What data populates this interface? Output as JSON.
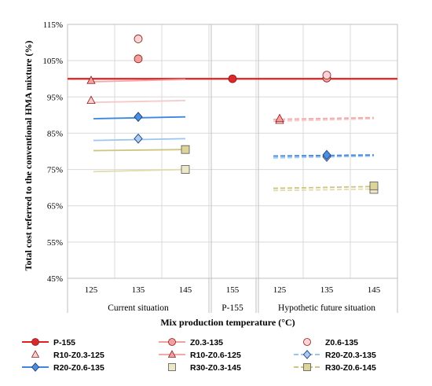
{
  "chart_data": {
    "type": "scatter",
    "title": "",
    "ylabel": "Total cost referred to the conventional HMA mixture (%)",
    "xlabel": "Mix production temperature (°C)",
    "ylim": [
      45,
      115
    ],
    "y_ticks": [
      "45%",
      "55%",
      "65%",
      "75%",
      "85%",
      "95%",
      "105%",
      "115%"
    ],
    "y_tick_values": [
      45,
      55,
      65,
      75,
      85,
      95,
      105,
      115
    ],
    "grid": true,
    "legend_position": "bottom",
    "groups": [
      {
        "label": "Current situation",
        "ticks": [
          "125",
          "135",
          "145"
        ]
      },
      {
        "label": "P-155",
        "ticks": [
          "155"
        ]
      },
      {
        "label": "Hypothetic future situation",
        "ticks": [
          "125",
          "135",
          "145"
        ]
      }
    ],
    "series": [
      {
        "name": "P-155",
        "marker": "circle",
        "color": "#d9292b",
        "points": [
          [
            4,
            100
          ]
        ],
        "trend": [
          100,
          100
        ]
      },
      {
        "name": "Z0.3-135",
        "marker": "circle",
        "color": "#f0a0a0",
        "points": [
          [
            2,
            105.5
          ],
          [
            6,
            100.2
          ]
        ]
      },
      {
        "name": "Z0.6-135",
        "marker": "circle",
        "color": "#fbd4d4",
        "points": [
          [
            2,
            111
          ],
          [
            6,
            101
          ]
        ]
      },
      {
        "name": "R10-Z0.3-125",
        "marker": "triangle",
        "color": "#fbd0d0",
        "points": [
          [
            1,
            94
          ]
        ],
        "trend": [
          93.5,
          94
        ]
      },
      {
        "name": "R10-Z0.6-125",
        "marker": "triangle",
        "color": "#f4a0a0",
        "points": [
          [
            1,
            99.5
          ]
        ],
        "trend": [
          99.2,
          99.8
        ]
      },
      {
        "name": "R20-Z0.3-135",
        "marker": "diamond",
        "color": "#a8cdf0",
        "points": [
          [
            2,
            83.5
          ]
        ],
        "trend": [
          83,
          83.5
        ]
      },
      {
        "name": "R20-Z0.6-135",
        "marker": "diamond",
        "color": "#4a8fe0",
        "points": [
          [
            2,
            89.5
          ]
        ],
        "trend": [
          89,
          89.5
        ]
      },
      {
        "name": "R30-Z0.3-145",
        "marker": "square",
        "color": "#ece8c6",
        "points": [
          [
            3,
            75
          ]
        ],
        "trend": [
          74.4,
          75
        ]
      },
      {
        "name": "R30-Z0.6-145",
        "marker": "square",
        "color": "#ddd49a",
        "points": [
          [
            3,
            80.5
          ]
        ],
        "trend": [
          80.2,
          80.5
        ]
      },
      {
        "name": "R10-Z0.3-125",
        "marker": "triangle",
        "color": "#fbd0d0",
        "points": [
          [
            5,
            88.5
          ]
        ],
        "trend": [
          88.3,
          89
        ],
        "dashed": true,
        "future": true
      },
      {
        "name": "R10-Z0.6-125",
        "marker": "triangle",
        "color": "#f4a0a0",
        "points": [
          [
            5,
            89
          ]
        ],
        "trend": [
          88.8,
          89.3
        ],
        "dashed": true,
        "future": true
      },
      {
        "name": "R20-Z0.3-135",
        "marker": "diamond",
        "color": "#a8cdf0",
        "points": [
          [
            6,
            78.5
          ]
        ],
        "trend": [
          78.2,
          78.7
        ],
        "dashed": true,
        "future": true
      },
      {
        "name": "R20-Z0.6-135",
        "marker": "diamond",
        "color": "#4a8fe0",
        "points": [
          [
            6,
            79
          ]
        ],
        "trend": [
          78.7,
          79
        ],
        "dashed": true,
        "future": true
      },
      {
        "name": "R30-Z0.3-145",
        "marker": "square",
        "color": "#ece8c6",
        "points": [
          [
            7,
            69.5
          ]
        ],
        "trend": [
          69.2,
          69.6
        ],
        "dashed": true,
        "future": true
      },
      {
        "name": "R30-Z0.6-145",
        "marker": "square",
        "color": "#ddd49a",
        "points": [
          [
            7,
            70.5
          ]
        ],
        "trend": [
          69.8,
          70.3
        ],
        "dashed": true,
        "future": true
      }
    ],
    "legend": [
      {
        "name": "P-155",
        "marker": "circle",
        "color": "#d9292b",
        "line": true
      },
      {
        "name": "Z0.3-135",
        "marker": "circle",
        "color": "#f0a0a0",
        "line": true
      },
      {
        "name": "Z0.6-135",
        "marker": "circle",
        "color": "#fbd4d4",
        "line": false
      },
      {
        "name": "R10-Z0.3-125",
        "marker": "triangle",
        "color": "#fbd0d0",
        "line": false
      },
      {
        "name": "R10-Z0.6-125",
        "marker": "triangle",
        "color": "#f4a0a0",
        "line": true
      },
      {
        "name": "R20-Z0.3-135",
        "marker": "diamond",
        "color": "#a8cdf0",
        "line": "dashed"
      },
      {
        "name": "R20-Z0.6-135",
        "marker": "diamond",
        "color": "#4a8fe0",
        "line": true
      },
      {
        "name": "R30-Z0.3-145",
        "marker": "square",
        "color": "#ece8c6",
        "line": false
      },
      {
        "name": "R30-Z0.6-145",
        "marker": "square",
        "color": "#ddd49a",
        "line": "dashed"
      }
    ]
  }
}
